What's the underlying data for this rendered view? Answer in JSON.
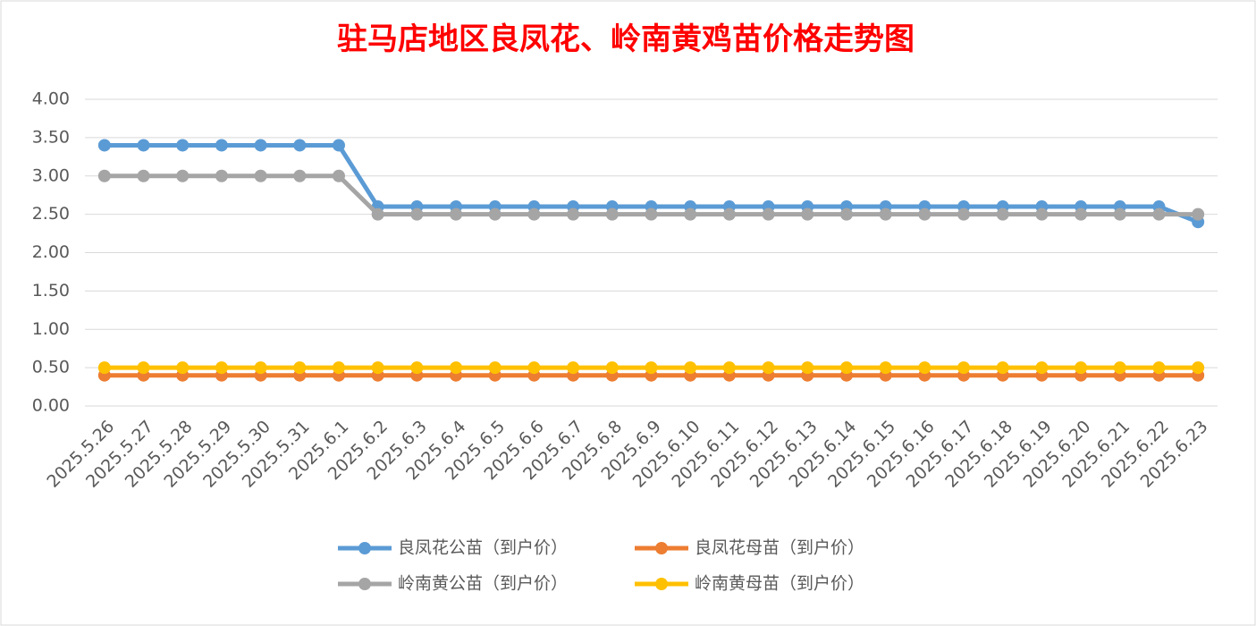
{
  "chart_data": {
    "type": "line",
    "title": "驻马店地区良凤花、岭南黄鸡苗价格走势图",
    "categories": [
      "2025.5.26",
      "2025.5.27",
      "2025.5.28",
      "2025.5.29",
      "2025.5.30",
      "2025.5.31",
      "2025.6.1",
      "2025.6.2",
      "2025.6.3",
      "2025.6.4",
      "2025.6.5",
      "2025.6.6",
      "2025.6.7",
      "2025.6.8",
      "2025.6.9",
      "2025.6.10",
      "2025.6.11",
      "2025.6.12",
      "2025.6.13",
      "2025.6.14",
      "2025.6.15",
      "2025.6.16",
      "2025.6.17",
      "2025.6.18",
      "2025.6.19",
      "2025.6.20",
      "2025.6.21",
      "2025.6.22",
      "2025.6.23"
    ],
    "series": [
      {
        "name": "良凤花公苗（到户价）",
        "color": "#5b9bd5",
        "values": [
          3.4,
          3.4,
          3.4,
          3.4,
          3.4,
          3.4,
          3.4,
          2.6,
          2.6,
          2.6,
          2.6,
          2.6,
          2.6,
          2.6,
          2.6,
          2.6,
          2.6,
          2.6,
          2.6,
          2.6,
          2.6,
          2.6,
          2.6,
          2.6,
          2.6,
          2.6,
          2.6,
          2.6,
          2.4
        ]
      },
      {
        "name": "良凤花母苗（到户价）",
        "color": "#ed7d31",
        "values": [
          0.4,
          0.4,
          0.4,
          0.4,
          0.4,
          0.4,
          0.4,
          0.4,
          0.4,
          0.4,
          0.4,
          0.4,
          0.4,
          0.4,
          0.4,
          0.4,
          0.4,
          0.4,
          0.4,
          0.4,
          0.4,
          0.4,
          0.4,
          0.4,
          0.4,
          0.4,
          0.4,
          0.4,
          0.4
        ]
      },
      {
        "name": "岭南黄公苗（到户价）",
        "color": "#a5a5a5",
        "values": [
          3.0,
          3.0,
          3.0,
          3.0,
          3.0,
          3.0,
          3.0,
          2.5,
          2.5,
          2.5,
          2.5,
          2.5,
          2.5,
          2.5,
          2.5,
          2.5,
          2.5,
          2.5,
          2.5,
          2.5,
          2.5,
          2.5,
          2.5,
          2.5,
          2.5,
          2.5,
          2.5,
          2.5,
          2.5
        ]
      },
      {
        "name": "岭南黄母苗（到户价）",
        "color": "#ffc000",
        "values": [
          0.5,
          0.5,
          0.5,
          0.5,
          0.5,
          0.5,
          0.5,
          0.5,
          0.5,
          0.5,
          0.5,
          0.5,
          0.5,
          0.5,
          0.5,
          0.5,
          0.5,
          0.5,
          0.5,
          0.5,
          0.5,
          0.5,
          0.5,
          0.5,
          0.5,
          0.5,
          0.5,
          0.5,
          0.5
        ]
      }
    ],
    "ylim": [
      0,
      4
    ],
    "yticks": [
      {
        "value": 0,
        "label": "0.00"
      },
      {
        "value": 0.5,
        "label": "0.50"
      },
      {
        "value": 1,
        "label": "1.00"
      },
      {
        "value": 1.5,
        "label": "1.50"
      },
      {
        "value": 2,
        "label": "2.00"
      },
      {
        "value": 2.5,
        "label": "2.50"
      },
      {
        "value": 3,
        "label": "3.00"
      },
      {
        "value": 3.5,
        "label": "3.50"
      },
      {
        "value": 4,
        "label": "4.00"
      }
    ],
    "grid": true,
    "legend": "bottom"
  }
}
